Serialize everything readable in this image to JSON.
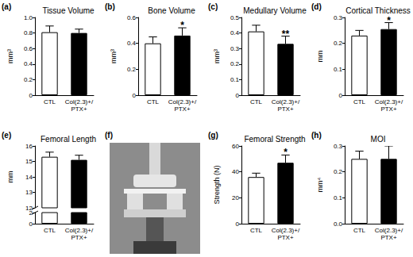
{
  "chart_data": [
    {
      "type": "bar",
      "panel": "(a)",
      "title": "Tissue Volume",
      "ylabel": "mm³",
      "categories": [
        "CTL",
        "Col(2.3)+/\nPTX+"
      ],
      "values": [
        0.81,
        0.8
      ],
      "errors": [
        0.08,
        0.05
      ],
      "colors": [
        "#ffffff",
        "#000000"
      ],
      "ylim": [
        0,
        1
      ],
      "yticks": [
        0,
        0.2,
        0.4,
        0.6,
        0.8,
        {
          "value": 1,
          "label": "1.0"
        }
      ],
      "grid": false
    },
    {
      "type": "bar",
      "panel": "(b)",
      "title": "Bone Volume",
      "ylabel": "mm³",
      "categories": [
        "CTL",
        "Col(2.3)+/\nPTX+"
      ],
      "values": [
        0.4,
        0.46
      ],
      "errors": [
        0.05,
        0.06
      ],
      "annotations": [
        null,
        "*"
      ],
      "colors": [
        "#ffffff",
        "#000000"
      ],
      "ylim": [
        0,
        0.6
      ],
      "yticks": [
        0,
        0.2,
        0.4,
        0.6
      ],
      "grid": false
    },
    {
      "type": "bar",
      "panel": "(c)",
      "title": "Medullary Volume",
      "ylabel": "mm³",
      "categories": [
        "CTL",
        "Col(2.3)+/\nPTX+"
      ],
      "values": [
        0.41,
        0.33
      ],
      "errors": [
        0.04,
        0.05
      ],
      "annotations": [
        null,
        "**"
      ],
      "colors": [
        "#ffffff",
        "#000000"
      ],
      "ylim": [
        0,
        0.5
      ],
      "yticks": [
        0,
        0.1,
        0.2,
        0.3,
        0.4,
        0.5
      ],
      "grid": false
    },
    {
      "type": "bar",
      "panel": "(d)",
      "title": "Cortical Thickness",
      "ylabel": "mm",
      "categories": [
        "CTL",
        "Col(2.3)+/\nPTX+"
      ],
      "values": [
        0.23,
        0.255
      ],
      "errors": [
        0.02,
        0.025
      ],
      "annotations": [
        null,
        "*"
      ],
      "colors": [
        "#ffffff",
        "#000000"
      ],
      "ylim": [
        0,
        0.3
      ],
      "yticks": [
        0,
        0.1,
        0.2,
        0.3
      ],
      "grid": false
    },
    {
      "type": "bar",
      "panel": "(e)",
      "title": "Femoral Length",
      "ylabel": "mm",
      "categories": [
        "CTL",
        "Col(2.3)+/\nPTX+"
      ],
      "values": [
        15.3,
        15.1
      ],
      "errors": [
        0.3,
        0.3
      ],
      "colors": [
        "#ffffff",
        "#000000"
      ],
      "ylim": [
        0,
        16
      ],
      "y_break": [
        2,
        12
      ],
      "yticks": [
        0,
        2,
        12,
        13,
        14,
        15,
        16
      ],
      "grid": false
    },
    {
      "type": "bar",
      "panel": "(g)",
      "title": "Femoral Strength",
      "ylabel": "Strength (N)",
      "categories": [
        "CTL",
        "Col(2.3)+/\nPTX+"
      ],
      "values": [
        36,
        47
      ],
      "errors": [
        3,
        6
      ],
      "annotations": [
        null,
        "*"
      ],
      "colors": [
        "#ffffff",
        "#000000"
      ],
      "ylim": [
        0,
        60
      ],
      "yticks": [
        0,
        20,
        40,
        60
      ],
      "grid": false
    },
    {
      "type": "bar",
      "panel": "(h)",
      "title": "MOI",
      "ylabel": "mm⁴",
      "categories": [
        "CTL",
        "Col(2.3)+/\nPTX+"
      ],
      "values": [
        0.25,
        0.25
      ],
      "errors": [
        0.03,
        0.05
      ],
      "colors": [
        "#ffffff",
        "#000000"
      ],
      "ylim": [
        0,
        0.3
      ],
      "yticks": [
        {
          "value": 0,
          "label": "0.0"
        },
        0.1,
        0.2,
        0.3
      ],
      "grid": false
    }
  ],
  "photo": {
    "panel": "(f)"
  }
}
